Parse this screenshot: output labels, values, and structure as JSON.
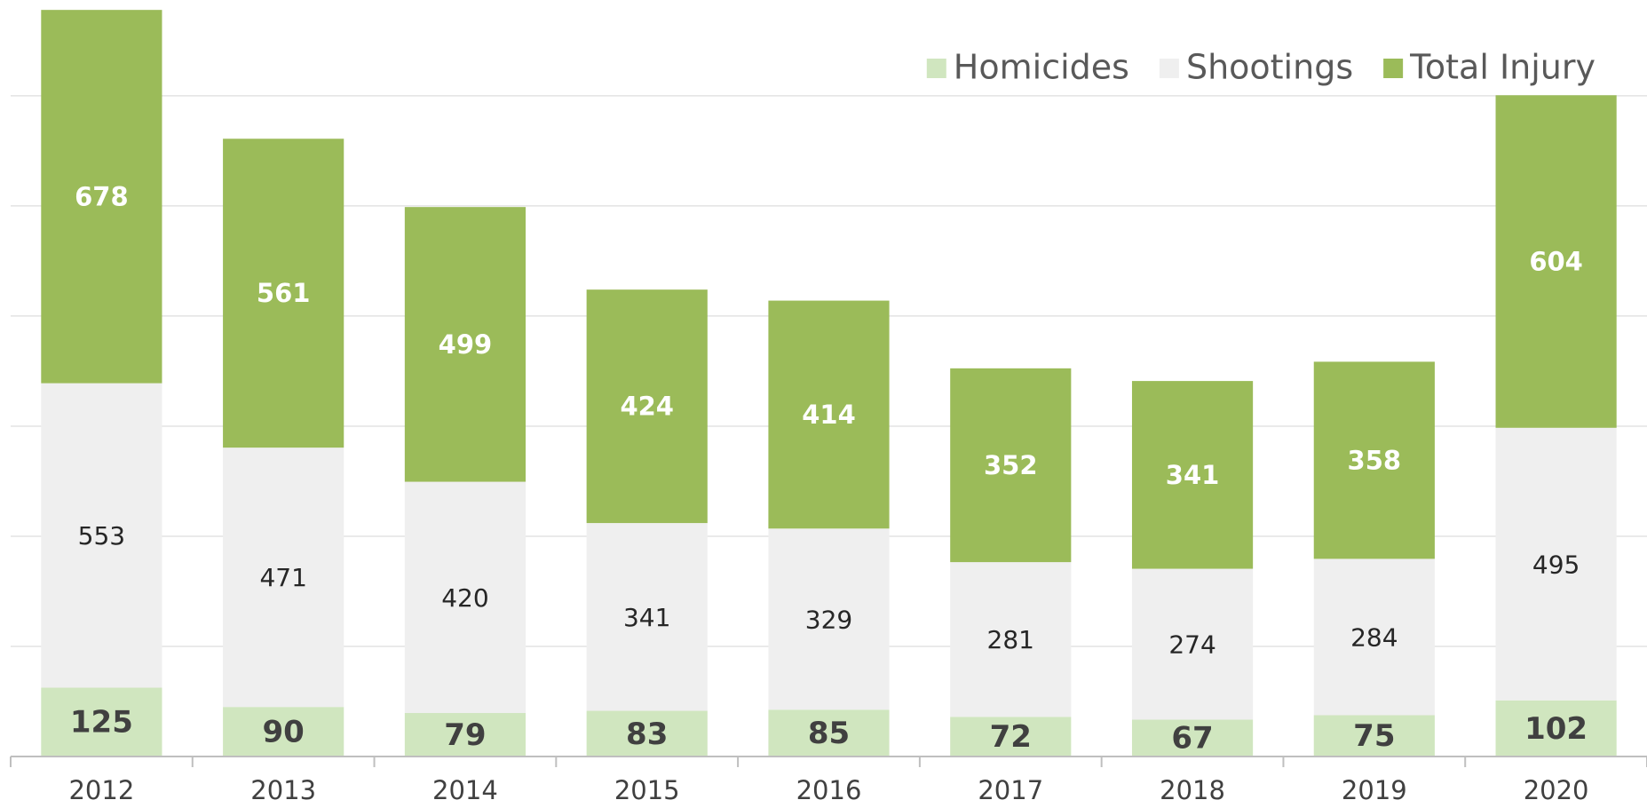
{
  "chart_data": {
    "type": "stacked_bar",
    "categories": [
      "2012",
      "2013",
      "2014",
      "2015",
      "2016",
      "2017",
      "2018",
      "2019",
      "2020"
    ],
    "series": [
      {
        "name": "Homicides",
        "color": "#d0e6bf",
        "values": [
          125,
          90,
          79,
          83,
          85,
          72,
          67,
          75,
          102
        ]
      },
      {
        "name": "Shootings",
        "color": "#efefef",
        "values": [
          553,
          471,
          420,
          341,
          329,
          281,
          274,
          284,
          495
        ]
      },
      {
        "name": "Total Injury",
        "color": "#9bbb59",
        "values": [
          678,
          561,
          499,
          424,
          414,
          352,
          341,
          358,
          604
        ]
      }
    ],
    "ylim": [
      0,
      1374
    ],
    "yticks": [
      0,
      200,
      400,
      600,
      800,
      1000,
      1200
    ],
    "grid": true,
    "legend": "top-right"
  }
}
